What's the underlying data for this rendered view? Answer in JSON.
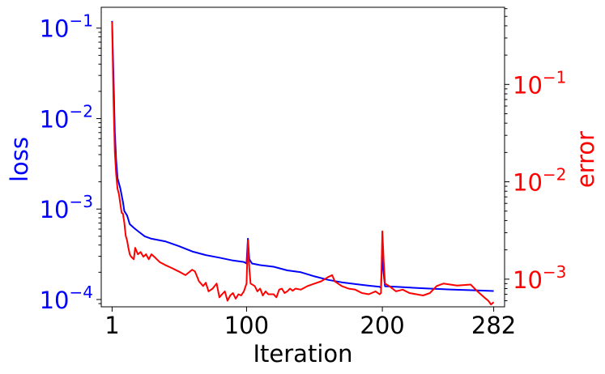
{
  "chart_data": {
    "type": "line",
    "xlabel": "Iteration",
    "ylabel_left": "loss",
    "ylabel_right": "error",
    "x_ticks": [
      1,
      100,
      200,
      282
    ],
    "xlim": [
      -7,
      290
    ],
    "left_axis": {
      "scale": "log",
      "ylim": [
        8.3e-05,
        0.17
      ],
      "ticks": [
        {
          "value": 0.1,
          "base": "10",
          "exp": "−1"
        },
        {
          "value": 0.01,
          "base": "10",
          "exp": "−2"
        },
        {
          "value": 0.001,
          "base": "10",
          "exp": "−3"
        },
        {
          "value": 0.0001,
          "base": "10",
          "exp": "−4"
        }
      ],
      "color": "#0000ff"
    },
    "right_axis": {
      "scale": "log",
      "ylim": [
        0.00052,
        0.62
      ],
      "ticks": [
        {
          "value": 0.1,
          "base": "10",
          "exp": "−1"
        },
        {
          "value": 0.01,
          "base": "10",
          "exp": "−2"
        },
        {
          "value": 0.001,
          "base": "10",
          "exp": "−3"
        }
      ],
      "color": "#ff0000"
    },
    "series": [
      {
        "axis": "left",
        "color": "#0000ff",
        "points": [
          [
            1,
            0.12
          ],
          [
            2,
            0.03
          ],
          [
            3,
            0.007
          ],
          [
            4,
            0.0035
          ],
          [
            5,
            0.0022
          ],
          [
            7,
            0.0017
          ],
          [
            9,
            0.0012
          ],
          [
            10,
            0.00095
          ],
          [
            12,
            0.00085
          ],
          [
            14,
            0.00068
          ],
          [
            17,
            0.00062
          ],
          [
            20,
            0.00057
          ],
          [
            25,
            0.0005
          ],
          [
            30,
            0.00047
          ],
          [
            40,
            0.00044
          ],
          [
            50,
            0.00039
          ],
          [
            60,
            0.00034
          ],
          [
            70,
            0.00031
          ],
          [
            80,
            0.00029
          ],
          [
            90,
            0.00027
          ],
          [
            98,
            0.00026
          ],
          [
            100,
            0.00025
          ],
          [
            101,
            0.00047
          ],
          [
            102,
            0.00028
          ],
          [
            104,
            0.00025
          ],
          [
            110,
            0.00024
          ],
          [
            120,
            0.00023
          ],
          [
            130,
            0.00021
          ],
          [
            140,
            0.0002
          ],
          [
            150,
            0.00018
          ],
          [
            160,
            0.000165
          ],
          [
            170,
            0.000155
          ],
          [
            180,
            0.000148
          ],
          [
            190,
            0.000142
          ],
          [
            198,
            0.000138
          ],
          [
            199,
            0.000135
          ],
          [
            200,
            0.00031
          ],
          [
            201,
            0.00019
          ],
          [
            202,
            0.00014
          ],
          [
            210,
            0.000138
          ],
          [
            230,
            0.000133
          ],
          [
            250,
            0.000129
          ],
          [
            270,
            0.000126
          ],
          [
            282,
            0.000124
          ]
        ]
      },
      {
        "axis": "right",
        "color": "#ff0000",
        "points": [
          [
            1,
            0.44
          ],
          [
            2,
            0.07
          ],
          [
            3,
            0.02
          ],
          [
            4,
            0.012
          ],
          [
            5,
            0.0085
          ],
          [
            6,
            0.0075
          ],
          [
            7,
            0.006
          ],
          [
            8,
            0.0048
          ],
          [
            9,
            0.0047
          ],
          [
            10,
            0.0038
          ],
          [
            11,
            0.0028
          ],
          [
            12,
            0.0025
          ],
          [
            13,
            0.0021
          ],
          [
            14,
            0.0018
          ],
          [
            15,
            0.0017
          ],
          [
            17,
            0.0016
          ],
          [
            18,
            0.0021
          ],
          [
            20,
            0.0018
          ],
          [
            22,
            0.0019
          ],
          [
            24,
            0.0017
          ],
          [
            26,
            0.0018
          ],
          [
            28,
            0.0016
          ],
          [
            30,
            0.0018
          ],
          [
            32,
            0.0017
          ],
          [
            34,
            0.0016
          ],
          [
            36,
            0.0015
          ],
          [
            40,
            0.0014
          ],
          [
            45,
            0.0013
          ],
          [
            50,
            0.0012
          ],
          [
            55,
            0.0011
          ],
          [
            60,
            0.00125
          ],
          [
            62,
            0.0012
          ],
          [
            65,
            0.00095
          ],
          [
            68,
            0.00085
          ],
          [
            70,
            0.00092
          ],
          [
            72,
            0.00075
          ],
          [
            75,
            0.0008
          ],
          [
            78,
            0.0009
          ],
          [
            80,
            0.00065
          ],
          [
            82,
            0.0007
          ],
          [
            84,
            0.00075
          ],
          [
            86,
            0.0006
          ],
          [
            88,
            0.00068
          ],
          [
            90,
            0.00072
          ],
          [
            92,
            0.00063
          ],
          [
            94,
            0.0007
          ],
          [
            96,
            0.00068
          ],
          [
            98,
            0.00075
          ],
          [
            100,
            0.0009
          ],
          [
            101,
            0.0025
          ],
          [
            102,
            0.0013
          ],
          [
            103,
            0.0009
          ],
          [
            106,
            0.00085
          ],
          [
            108,
            0.00075
          ],
          [
            110,
            0.0008
          ],
          [
            112,
            0.00068
          ],
          [
            114,
            0.00075
          ],
          [
            116,
            0.0007
          ],
          [
            120,
            0.0007
          ],
          [
            122,
            0.00065
          ],
          [
            124,
            0.00078
          ],
          [
            126,
            0.0008
          ],
          [
            128,
            0.00072
          ],
          [
            130,
            0.00075
          ],
          [
            132,
            0.0008
          ],
          [
            134,
            0.00076
          ],
          [
            136,
            0.0008
          ],
          [
            140,
            0.00078
          ],
          [
            145,
            0.00085
          ],
          [
            150,
            0.0009
          ],
          [
            155,
            0.00095
          ],
          [
            160,
            0.00105
          ],
          [
            163,
            0.0011
          ],
          [
            165,
            0.00095
          ],
          [
            170,
            0.00085
          ],
          [
            175,
            0.0008
          ],
          [
            180,
            0.00078
          ],
          [
            185,
            0.00072
          ],
          [
            190,
            0.0007
          ],
          [
            195,
            0.00075
          ],
          [
            198,
            0.0007
          ],
          [
            199,
            0.00072
          ],
          [
            200,
            0.0031
          ],
          [
            201,
            0.0015
          ],
          [
            202,
            0.0009
          ],
          [
            205,
            0.00085
          ],
          [
            210,
            0.00075
          ],
          [
            215,
            0.00078
          ],
          [
            220,
            0.00072
          ],
          [
            225,
            0.0007
          ],
          [
            230,
            0.00068
          ],
          [
            235,
            0.00072
          ],
          [
            240,
            0.00085
          ],
          [
            245,
            0.0009
          ],
          [
            250,
            0.00088
          ],
          [
            255,
            0.00086
          ],
          [
            260,
            0.00087
          ],
          [
            265,
            0.00088
          ],
          [
            270,
            0.00075
          ],
          [
            275,
            0.00065
          ],
          [
            278,
            0.0006
          ],
          [
            280,
            0.00055
          ],
          [
            282,
            0.00058
          ]
        ]
      }
    ]
  }
}
